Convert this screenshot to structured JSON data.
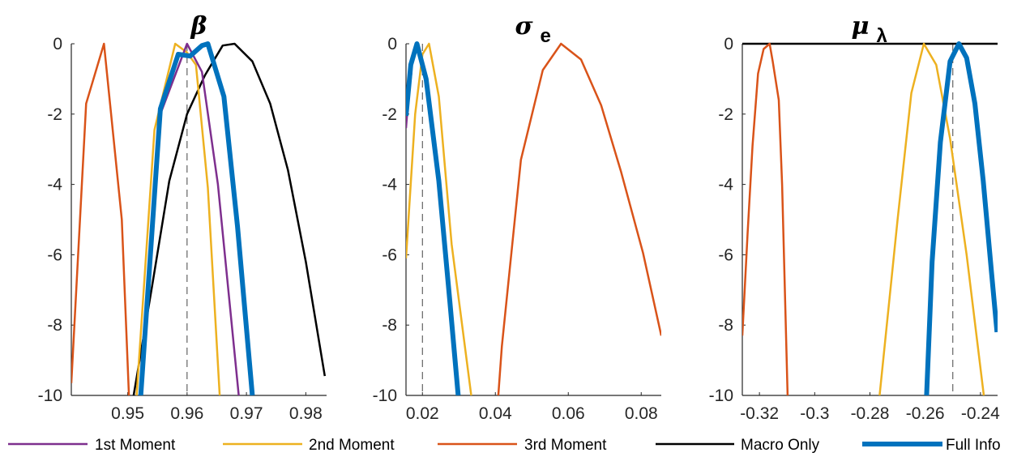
{
  "chart_data": [
    {
      "type": "line",
      "title": "β",
      "title_sub": "",
      "xlim": [
        0.9405,
        0.9835
      ],
      "ylim": [
        -10,
        0
      ],
      "xticks": [
        0.95,
        0.96,
        0.97,
        0.98
      ],
      "xtick_labels": [
        "0.95",
        "0.96",
        "0.97",
        "0.98"
      ],
      "yticks": [
        0,
        -2,
        -4,
        -6,
        -8,
        -10
      ],
      "ytick_labels": [
        "0",
        "-2",
        "-4",
        "-6",
        "-8",
        "-10"
      ],
      "true_value": 0.96,
      "series": [
        {
          "name": "3rd Moment",
          "points": [
            [
              0.9405,
              -9.65
            ],
            [
              0.943,
              -1.7
            ],
            [
              0.946,
              0
            ],
            [
              0.949,
              -5.0
            ],
            [
              0.9502,
              -10
            ]
          ]
        },
        {
          "name": "Macro Only",
          "points": [
            [
              0.951,
              -10
            ],
            [
              0.954,
              -7.0
            ],
            [
              0.957,
              -3.9
            ],
            [
              0.96,
              -2.0
            ],
            [
              0.963,
              -0.9
            ],
            [
              0.966,
              -0.05
            ],
            [
              0.968,
              0
            ],
            [
              0.971,
              -0.5
            ],
            [
              0.974,
              -1.7
            ],
            [
              0.977,
              -3.6
            ],
            [
              0.98,
              -6.2
            ],
            [
              0.9832,
              -9.45
            ]
          ]
        },
        {
          "name": "2nd Moment",
          "points": [
            [
              0.9515,
              -10
            ],
            [
              0.9545,
              -2.45
            ],
            [
              0.958,
              0
            ],
            [
              0.96,
              -0.25
            ],
            [
              0.9615,
              -0.6
            ],
            [
              0.9635,
              -4.1
            ],
            [
              0.9655,
              -10
            ]
          ]
        },
        {
          "name": "1st Moment",
          "points": [
            [
              0.9522,
              -10
            ],
            [
              0.9555,
              -2.0
            ],
            [
              0.96,
              0
            ],
            [
              0.9625,
              -0.8
            ],
            [
              0.9652,
              -4.0
            ],
            [
              0.9687,
              -10
            ]
          ]
        },
        {
          "name": "Full Info",
          "points": [
            [
              0.9522,
              -10
            ],
            [
              0.9555,
              -1.85
            ],
            [
              0.9585,
              -0.3
            ],
            [
              0.9605,
              -0.35
            ],
            [
              0.9625,
              -0.05
            ],
            [
              0.9635,
              0
            ],
            [
              0.9662,
              -1.5
            ],
            [
              0.9685,
              -5.2
            ],
            [
              0.971,
              -10
            ]
          ]
        }
      ]
    },
    {
      "type": "line",
      "title": "σ",
      "title_sub": "e",
      "xlim": [
        0.0155,
        0.0855
      ],
      "ylim": [
        -10,
        0
      ],
      "xticks": [
        0.02,
        0.04,
        0.06,
        0.08
      ],
      "xtick_labels": [
        "0.02",
        "0.04",
        "0.06",
        "0.08"
      ],
      "yticks": [
        0,
        -2,
        -4,
        -6,
        -8,
        -10
      ],
      "ytick_labels": [
        "0",
        "-2",
        "-4",
        "-6",
        "-8",
        "-10"
      ],
      "true_value": 0.02,
      "series": [
        {
          "name": "1st Moment",
          "points": [
            [
              0.0155,
              -2.4
            ],
            [
              0.0162,
              -1.5
            ],
            [
              0.017,
              -0.8
            ]
          ]
        },
        {
          "name": "2nd Moment",
          "points": [
            [
              0.0155,
              -6.1
            ],
            [
              0.018,
              -2.0
            ],
            [
              0.02,
              -0.3
            ],
            [
              0.0218,
              0
            ],
            [
              0.0245,
              -1.5
            ],
            [
              0.028,
              -5.7
            ],
            [
              0.0334,
              -10
            ]
          ]
        },
        {
          "name": "3rd Moment",
          "points": [
            [
              0.0408,
              -10
            ],
            [
              0.0418,
              -8.6
            ],
            [
              0.047,
              -3.3
            ],
            [
              0.053,
              -0.75
            ],
            [
              0.058,
              0
            ],
            [
              0.0635,
              -0.45
            ],
            [
              0.069,
              -1.75
            ],
            [
              0.0745,
              -3.65
            ],
            [
              0.0805,
              -5.95
            ],
            [
              0.0855,
              -8.3
            ]
          ]
        },
        {
          "name": "Full Info",
          "points": [
            [
              0.0155,
              -2.05
            ],
            [
              0.0168,
              -0.6
            ],
            [
              0.0185,
              0
            ],
            [
              0.021,
              -1.0
            ],
            [
              0.0245,
              -3.9
            ],
            [
              0.0275,
              -7.3
            ],
            [
              0.0298,
              -10
            ]
          ]
        }
      ]
    },
    {
      "type": "line",
      "title": "μ",
      "title_sub": "λ",
      "xlim": [
        -0.3262,
        -0.2338
      ],
      "ylim": [
        -10,
        0
      ],
      "xticks": [
        -0.32,
        -0.3,
        -0.28,
        -0.26,
        -0.24
      ],
      "xtick_labels": [
        "-0.32",
        "-0.3",
        "-0.28",
        "-0.26",
        "-0.24"
      ],
      "yticks": [
        0,
        -2,
        -4,
        -6,
        -8,
        -10
      ],
      "ytick_labels": [
        "0",
        "-2",
        "-4",
        "-6",
        "-8",
        "-10"
      ],
      "true_value": -0.25,
      "series": [
        {
          "name": "Macro Only",
          "points": [
            [
              -0.3262,
              0
            ],
            [
              -0.2338,
              0
            ]
          ]
        },
        {
          "name": "3rd Moment",
          "points": [
            [
              -0.3262,
              -8.3
            ],
            [
              -0.3243,
              -5.4
            ],
            [
              -0.3225,
              -2.9
            ],
            [
              -0.3205,
              -0.85
            ],
            [
              -0.3185,
              -0.15
            ],
            [
              -0.3163,
              0
            ],
            [
              -0.3152,
              -0.5
            ],
            [
              -0.313,
              -1.6
            ],
            [
              -0.3118,
              -4.0
            ],
            [
              -0.3098,
              -10
            ]
          ]
        },
        {
          "name": "2nd Moment",
          "points": [
            [
              -0.2765,
              -10
            ],
            [
              -0.27,
              -5.0
            ],
            [
              -0.265,
              -1.4
            ],
            [
              -0.2605,
              0
            ],
            [
              -0.256,
              -0.6
            ],
            [
              -0.251,
              -2.7
            ],
            [
              -0.245,
              -6.0
            ],
            [
              -0.2388,
              -10
            ]
          ]
        },
        {
          "name": "Full Info",
          "points": [
            [
              -0.2595,
              -10
            ],
            [
              -0.2575,
              -6.2
            ],
            [
              -0.2545,
              -2.8
            ],
            [
              -0.251,
              -0.5
            ],
            [
              -0.2478,
              0
            ],
            [
              -0.245,
              -0.4
            ],
            [
              -0.242,
              -1.7
            ],
            [
              -0.239,
              -3.9
            ],
            [
              -0.236,
              -6.5
            ],
            [
              -0.234,
              -8.2
            ]
          ]
        }
      ]
    }
  ],
  "legend": [
    {
      "label": "1st Moment",
      "color": "#7e2f8e",
      "width": 2.5
    },
    {
      "label": "2nd Moment",
      "color": "#edb120",
      "width": 2.5
    },
    {
      "label": "3rd Moment",
      "color": "#d95319",
      "width": 2.5
    },
    {
      "label": "Macro Only",
      "color": "#000000",
      "width": 2.5
    },
    {
      "label": "Full Info",
      "color": "#0072bd",
      "width": 6
    }
  ]
}
